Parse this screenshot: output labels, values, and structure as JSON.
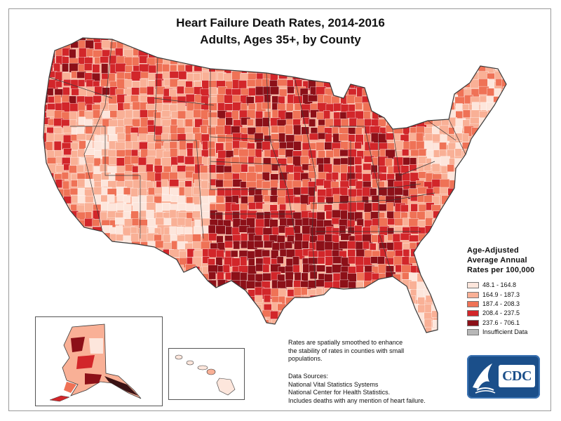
{
  "title": {
    "line1": "Heart Failure Death Rates, 2014-2016",
    "line2": "Adults, Ages 35+, by County"
  },
  "legend": {
    "title_lines": [
      "Age-Adjusted",
      "Average Annual",
      "Rates per 100,000"
    ],
    "items": [
      {
        "label": "48.1 - 164.8",
        "color": "#fde6dc"
      },
      {
        "label": "164.9 - 187.3",
        "color": "#f9b096"
      },
      {
        "label": "187.4 - 208.3",
        "color": "#ef7256"
      },
      {
        "label": "208.4 - 237.5",
        "color": "#d2262a"
      },
      {
        "label": "237.6 - 706.1",
        "color": "#8c1018"
      },
      {
        "label": "Insufficient Data",
        "color": "#b7b7b7"
      }
    ]
  },
  "note_lines": [
    "Rates are spatially smoothed to enhance",
    "the stability of rates in counties with small",
    "populations."
  ],
  "sources": {
    "heading": "Data Sources:",
    "lines": [
      "National Vital Statistics Systems",
      "National Center for Health Statistics.",
      "Includes deaths with any mention of heart failure."
    ]
  },
  "logo": {
    "text": "CDC",
    "color": "#1b4f8a"
  },
  "map_palette": {
    "class1": "#fde6dc",
    "class2": "#f9b096",
    "class3": "#ef7256",
    "class4": "#d2262a",
    "class5": "#8c1018",
    "county_border": "#ffffff",
    "state_border": "#3a3a3a"
  }
}
